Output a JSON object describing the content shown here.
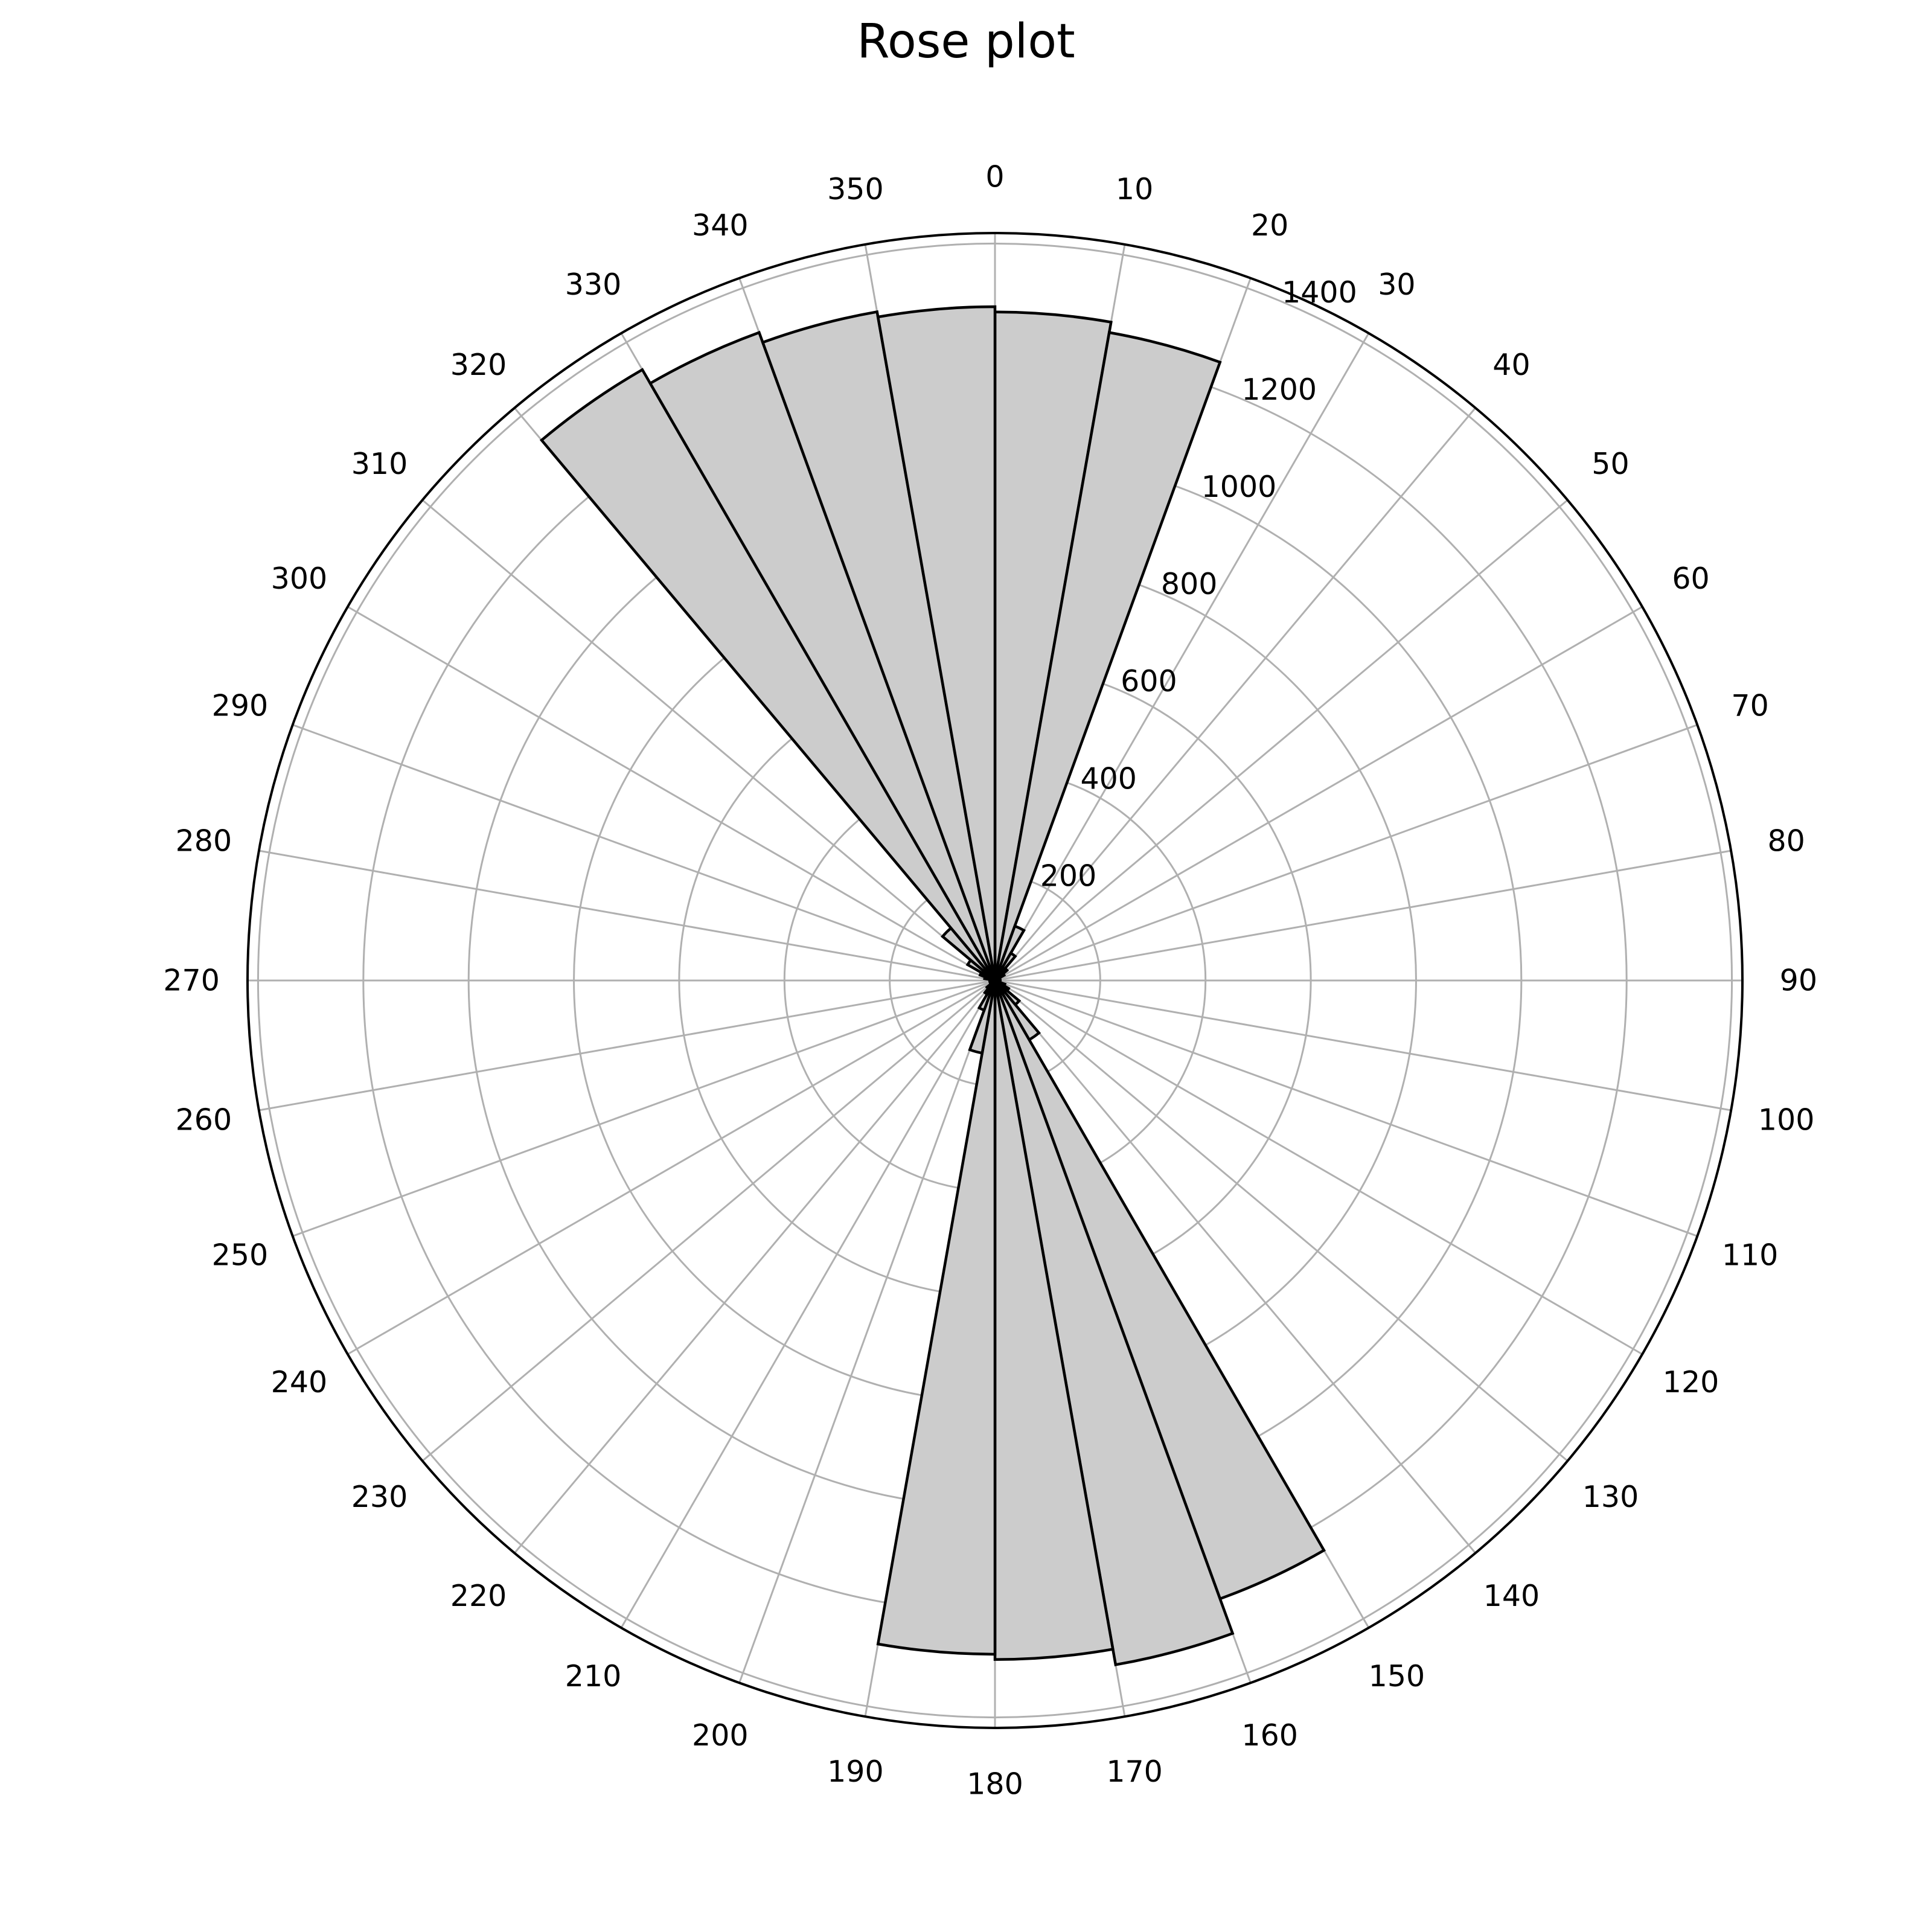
{
  "chart_data": {
    "type": "bar",
    "projection": "polar",
    "title": "Rose plot",
    "theta_zero_location": "N",
    "theta_direction": "clockwise",
    "bin_width_deg": 10,
    "theta_ticks": [
      0,
      10,
      20,
      30,
      40,
      50,
      60,
      70,
      80,
      90,
      100,
      110,
      120,
      130,
      140,
      150,
      160,
      170,
      180,
      190,
      200,
      210,
      220,
      230,
      240,
      250,
      260,
      270,
      280,
      290,
      300,
      310,
      320,
      330,
      340,
      350
    ],
    "r_ticks": [
      200,
      400,
      600,
      800,
      1000,
      1200,
      1400
    ],
    "r_tick_angle_deg": 22.5,
    "rlim": [
      0,
      1420
    ],
    "grid": true,
    "categories": [
      "0-10",
      "10-20",
      "20-30",
      "30-40",
      "40-50",
      "50-60",
      "60-70",
      "70-80",
      "80-90",
      "90-100",
      "100-110",
      "110-120",
      "120-130",
      "130-140",
      "140-150",
      "150-160",
      "160-170",
      "170-180",
      "180-190",
      "190-200",
      "200-210",
      "210-220",
      "220-230",
      "230-240",
      "240-250",
      "250-260",
      "260-270",
      "270-280",
      "280-290",
      "290-300",
      "300-310",
      "310-320",
      "320-330",
      "330-340",
      "340-350",
      "350-360"
    ],
    "values": [
      1270,
      1250,
      110,
      60,
      30,
      20,
      10,
      10,
      5,
      5,
      10,
      20,
      30,
      60,
      130,
      1250,
      1320,
      1290,
      1280,
      140,
      60,
      30,
      20,
      10,
      10,
      5,
      5,
      10,
      20,
      30,
      60,
      130,
      1340,
      1310,
      1290,
      1280
    ]
  }
}
